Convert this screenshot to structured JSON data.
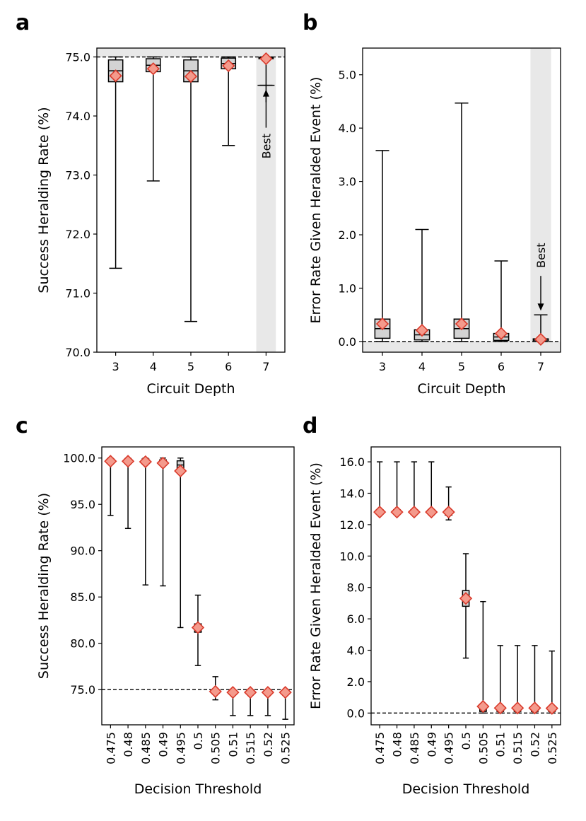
{
  "chart_data": [
    {
      "panel": "a",
      "type": "box",
      "xlabel": "Circuit Depth",
      "ylabel": "Success Heralding Rate (%)",
      "categories": [
        "3",
        "4",
        "5",
        "6",
        "7"
      ],
      "ylim": [
        70.0,
        75.15
      ],
      "yticks": [
        "70.0",
        "71.0",
        "72.0",
        "73.0",
        "74.0",
        "75.0"
      ],
      "reference_line": 75.0,
      "highlight_category": "7",
      "annotation": "Best",
      "boxes": [
        {
          "min": 71.42,
          "q1": 74.58,
          "q3": 74.95,
          "max": 75.0,
          "mean": 74.68
        },
        {
          "min": 72.9,
          "q1": 74.75,
          "q3": 74.97,
          "max": 75.0,
          "mean": 74.8
        },
        {
          "min": 70.52,
          "q1": 74.58,
          "q3": 74.95,
          "max": 75.0,
          "mean": 74.67
        },
        {
          "min": 73.5,
          "q1": 74.8,
          "q3": 74.98,
          "max": 75.0,
          "mean": 74.85
        },
        {
          "min": 74.52,
          "q1": 74.97,
          "q3": 74.99,
          "max": 75.0,
          "mean": 74.97
        }
      ]
    },
    {
      "panel": "b",
      "type": "box",
      "xlabel": "Circuit Depth",
      "ylabel": "Error Rate Given Heralded Event (%)",
      "categories": [
        "3",
        "4",
        "5",
        "6",
        "7"
      ],
      "ylim": [
        -0.2,
        5.5
      ],
      "yticks": [
        "0.0",
        "1.0",
        "2.0",
        "3.0",
        "4.0",
        "5.0"
      ],
      "reference_line": 0.0,
      "highlight_category": "7",
      "annotation": "Best",
      "boxes": [
        {
          "min": 0.0,
          "q1": 0.06,
          "q3": 0.42,
          "max": 3.58,
          "mean": 0.33
        },
        {
          "min": 0.0,
          "q1": 0.03,
          "q3": 0.22,
          "max": 2.1,
          "mean": 0.21
        },
        {
          "min": 0.0,
          "q1": 0.06,
          "q3": 0.42,
          "max": 4.47,
          "mean": 0.33
        },
        {
          "min": 0.0,
          "q1": 0.02,
          "q3": 0.15,
          "max": 1.51,
          "mean": 0.15
        },
        {
          "min": 0.0,
          "q1": 0.0,
          "q3": 0.05,
          "max": 0.5,
          "mean": 0.04
        }
      ]
    },
    {
      "panel": "c",
      "type": "box",
      "xlabel": "Decision Threshold",
      "ylabel": "Success Heralding Rate (%)",
      "categories": [
        "0.475",
        "0.48",
        "0.485",
        "0.49",
        "0.495",
        "0.5",
        "0.505",
        "0.51",
        "0.515",
        "0.52",
        "0.525"
      ],
      "ylim": [
        71.2,
        101.2
      ],
      "yticks": [
        "75.0",
        "80.0",
        "85.0",
        "90.0",
        "95.0",
        "100.0"
      ],
      "reference_line": 75.0,
      "boxes": [
        {
          "min": 93.8,
          "q1": 99.6,
          "q3": 99.9,
          "max": 100.0,
          "mean": 99.65
        },
        {
          "min": 92.4,
          "q1": 99.6,
          "q3": 99.9,
          "max": 100.0,
          "mean": 99.65
        },
        {
          "min": 86.3,
          "q1": 99.5,
          "q3": 99.9,
          "max": 100.0,
          "mean": 99.6
        },
        {
          "min": 86.2,
          "q1": 99.3,
          "q3": 99.8,
          "max": 100.0,
          "mean": 99.45
        },
        {
          "min": 81.7,
          "q1": 98.8,
          "q3": 99.7,
          "max": 100.0,
          "mean": 98.6
        },
        {
          "min": 77.6,
          "q1": 81.2,
          "q3": 82.1,
          "max": 85.2,
          "mean": 81.7
        },
        {
          "min": 73.9,
          "q1": 74.7,
          "q3": 75.0,
          "max": 76.4,
          "mean": 74.8
        },
        {
          "min": 72.2,
          "q1": 74.6,
          "q3": 74.85,
          "max": 75.0,
          "mean": 74.7
        },
        {
          "min": 72.2,
          "q1": 74.6,
          "q3": 74.85,
          "max": 75.0,
          "mean": 74.7
        },
        {
          "min": 72.2,
          "q1": 74.6,
          "q3": 74.85,
          "max": 75.0,
          "mean": 74.7
        },
        {
          "min": 71.8,
          "q1": 74.6,
          "q3": 74.85,
          "max": 75.0,
          "mean": 74.7
        }
      ]
    },
    {
      "panel": "d",
      "type": "box",
      "xlabel": "Decision Threshold",
      "ylabel": "Error Rate Given Heralded Event (%)",
      "categories": [
        "0.475",
        "0.48",
        "0.485",
        "0.49",
        "0.495",
        "0.5",
        "0.505",
        "0.51",
        "0.515",
        "0.52",
        "0.525"
      ],
      "ylim": [
        -0.75,
        16.95
      ],
      "yticks": [
        "0.0",
        "2.0",
        "4.0",
        "6.0",
        "8.0",
        "10.0",
        "12.0",
        "14.0",
        "16.0"
      ],
      "reference_line": 0.0,
      "boxes": [
        {
          "min": 12.6,
          "q1": 12.7,
          "q3": 12.95,
          "max": 16.0,
          "mean": 12.8
        },
        {
          "min": 12.6,
          "q1": 12.7,
          "q3": 12.95,
          "max": 16.0,
          "mean": 12.8
        },
        {
          "min": 12.6,
          "q1": 12.7,
          "q3": 12.95,
          "max": 16.0,
          "mean": 12.8
        },
        {
          "min": 12.6,
          "q1": 12.7,
          "q3": 12.95,
          "max": 16.0,
          "mean": 12.8
        },
        {
          "min": 12.3,
          "q1": 12.6,
          "q3": 12.95,
          "max": 14.4,
          "mean": 12.8
        },
        {
          "min": 3.5,
          "q1": 6.8,
          "q3": 7.8,
          "max": 10.15,
          "mean": 7.3
        },
        {
          "min": 0.0,
          "q1": 0.1,
          "q3": 0.45,
          "max": 7.1,
          "mean": 0.42
        },
        {
          "min": 0.0,
          "q1": 0.1,
          "q3": 0.4,
          "max": 4.3,
          "mean": 0.32
        },
        {
          "min": 0.0,
          "q1": 0.1,
          "q3": 0.4,
          "max": 4.3,
          "mean": 0.32
        },
        {
          "min": 0.0,
          "q1": 0.1,
          "q3": 0.4,
          "max": 4.3,
          "mean": 0.32
        },
        {
          "min": 0.0,
          "q1": 0.1,
          "q3": 0.4,
          "max": 3.95,
          "mean": 0.3
        }
      ]
    }
  ],
  "colors": {
    "box_fill": "#d3d3d3",
    "marker_fill": "#f49a8c",
    "marker_edge": "#d93a2b",
    "highlight": "#e8e8e8"
  }
}
